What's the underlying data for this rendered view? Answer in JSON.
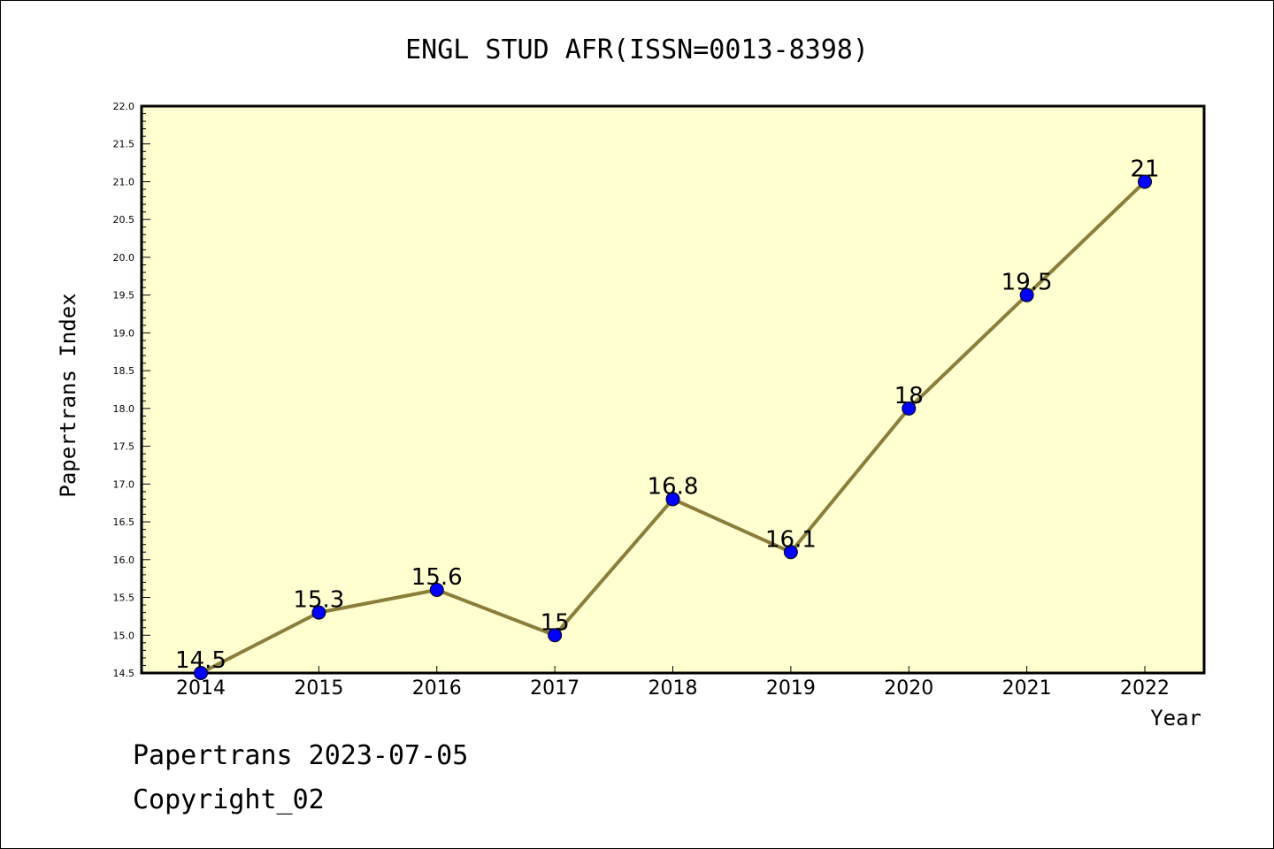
{
  "footer": {
    "line1": "Papertrans 2023-07-05",
    "line2": "Copyright_02"
  },
  "chart_data": {
    "type": "line",
    "title": "ENGL STUD AFR(ISSN=0013-8398)",
    "xlabel": "Year",
    "ylabel": "Papertrans Index",
    "categories": [
      "2014",
      "2015",
      "2016",
      "2017",
      "2018",
      "2019",
      "2020",
      "2021",
      "2022"
    ],
    "values": [
      14.5,
      15.3,
      15.6,
      15.0,
      16.8,
      16.1,
      18.0,
      19.5,
      21.0
    ],
    "data_labels": [
      "14.5",
      "15.3",
      "15.6",
      "15",
      "16.8",
      "16.1",
      "18",
      "19.5",
      "21"
    ],
    "ylim": [
      14.5,
      22.0
    ],
    "yticks": [
      "14.5",
      "15.0",
      "15.5",
      "16.0",
      "16.5",
      "17.0",
      "17.5",
      "18.0",
      "18.5",
      "19.0",
      "19.5",
      "20.0",
      "20.5",
      "21.0",
      "21.5",
      "22.0"
    ],
    "grid": false,
    "colors": {
      "plot_background": "#ffffd0",
      "line": "#8b7d3a",
      "marker": "#0000ff"
    }
  }
}
